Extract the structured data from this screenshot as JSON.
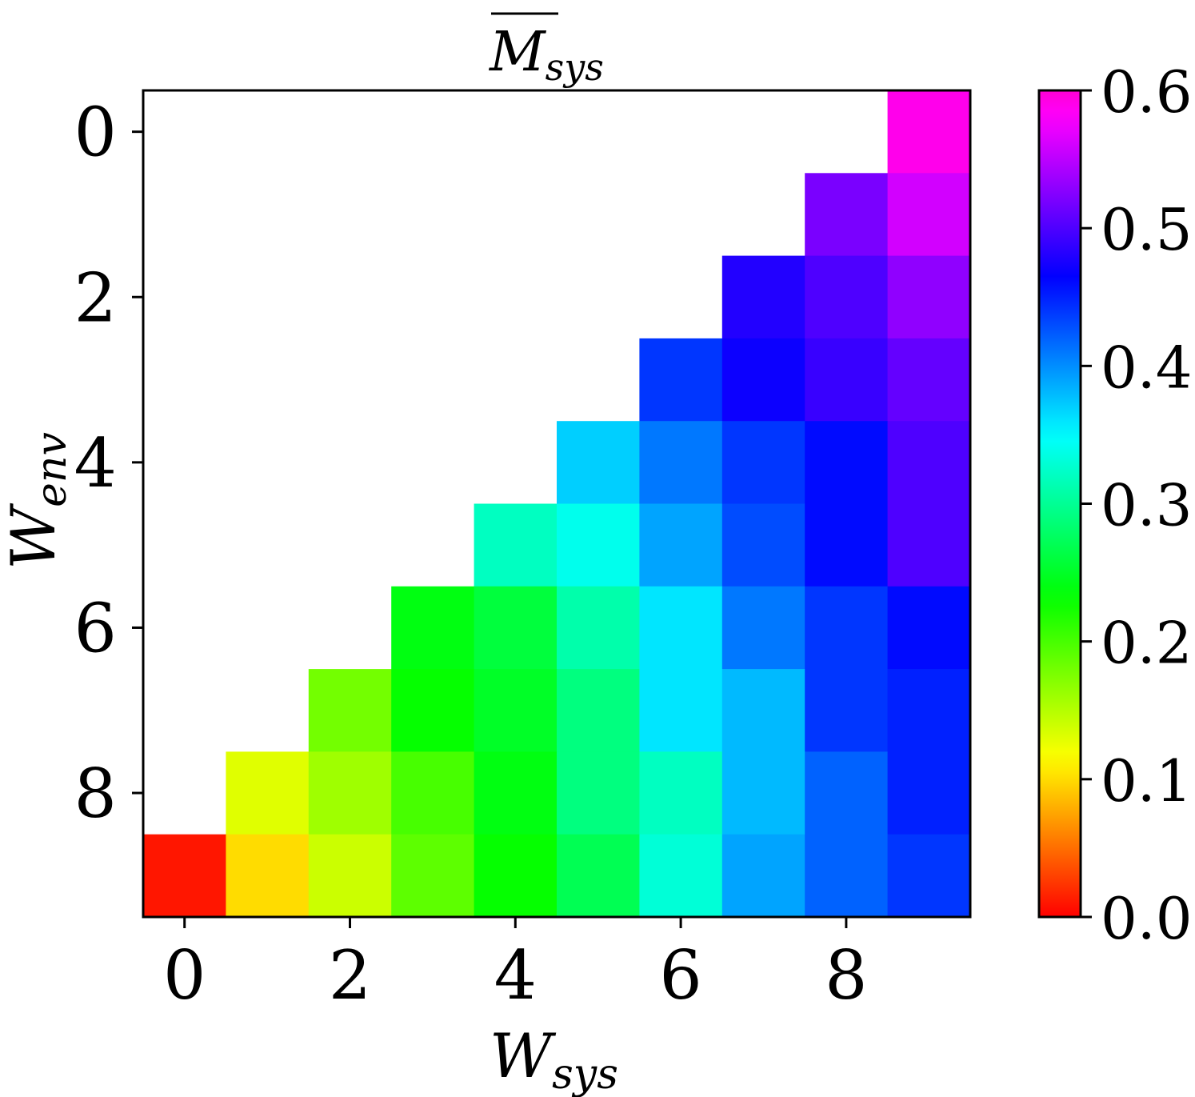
{
  "chart_data": {
    "type": "heatmap",
    "title": "M",
    "title_subscript": "sys",
    "title_overline": true,
    "xlabel": "W",
    "xlabel_subscript": "sys",
    "ylabel": "W",
    "ylabel_subscript": "env",
    "x_categories": [
      0,
      1,
      2,
      3,
      4,
      5,
      6,
      7,
      8,
      9
    ],
    "y_categories": [
      0,
      1,
      2,
      3,
      4,
      5,
      6,
      7,
      8,
      9
    ],
    "x_tick_labels": [
      "0",
      "2",
      "4",
      "6",
      "8"
    ],
    "y_tick_labels": [
      "0",
      "2",
      "4",
      "6",
      "8"
    ],
    "colorbar": {
      "range": [
        0.0,
        0.6
      ],
      "tick_labels": [
        "0.0",
        "0.1",
        "0.2",
        "0.3",
        "0.4",
        "0.5",
        "0.6"
      ],
      "colormap": "gist_rainbow"
    },
    "values": [
      [
        null,
        null,
        null,
        null,
        null,
        null,
        null,
        null,
        null,
        0.59
      ],
      [
        null,
        null,
        null,
        null,
        null,
        null,
        null,
        null,
        0.52,
        0.56
      ],
      [
        null,
        null,
        null,
        null,
        null,
        null,
        null,
        0.48,
        0.5,
        0.53
      ],
      [
        null,
        null,
        null,
        null,
        null,
        null,
        0.44,
        0.47,
        0.49,
        0.51
      ],
      [
        null,
        null,
        null,
        null,
        null,
        0.37,
        0.41,
        0.44,
        0.46,
        0.5
      ],
      [
        null,
        null,
        null,
        null,
        0.32,
        0.34,
        0.39,
        0.43,
        0.46,
        0.5
      ],
      [
        null,
        null,
        null,
        0.24,
        0.26,
        0.31,
        0.36,
        0.41,
        0.44,
        0.46
      ],
      [
        null,
        null,
        0.18,
        0.23,
        0.25,
        0.29,
        0.36,
        0.38,
        0.44,
        0.45
      ],
      [
        null,
        0.13,
        0.16,
        0.2,
        0.24,
        0.29,
        0.32,
        0.38,
        0.42,
        0.45
      ],
      [
        0.01,
        0.1,
        0.14,
        0.19,
        0.23,
        0.27,
        0.33,
        0.39,
        0.42,
        0.44
      ]
    ]
  }
}
